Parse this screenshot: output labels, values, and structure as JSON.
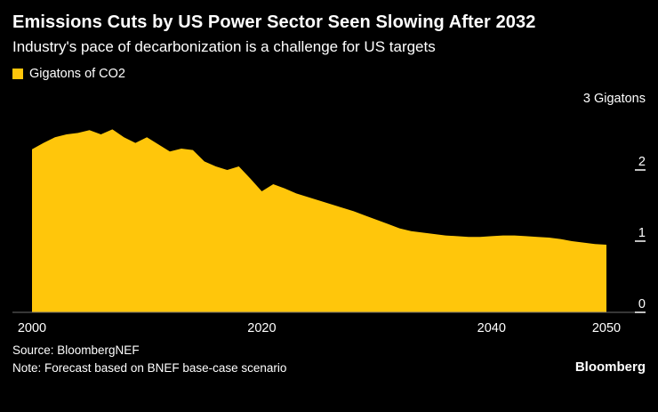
{
  "header": {
    "title": "Emissions Cuts by US Power Sector Seen Slowing After 2032",
    "subtitle": "Industry's pace of decarbonization is a challenge for US targets"
  },
  "legend": {
    "label": "Gigatons of CO2"
  },
  "footer": {
    "source": "Source: BloombergNEF",
    "note": "Note: Forecast based on BNEF base-case scenario",
    "brand": "Bloomberg"
  },
  "colors": {
    "series": "#FFC60B",
    "axis_line": "#6b6b6b",
    "tick_text": "#ffffff",
    "background": "#000000"
  },
  "chart_data": {
    "type": "area",
    "title": "Emissions Cuts by US Power Sector Seen Slowing After 2032",
    "subtitle": "Industry's pace of decarbonization is a challenge for US targets",
    "legend": [
      "Gigatons of CO2"
    ],
    "unit_top_label": "3 Gigatons",
    "ylabel": "Gigatons of CO2",
    "xlabel": "",
    "ylim": [
      0,
      3
    ],
    "xlim": [
      2000,
      2050
    ],
    "yticks": [
      2,
      1,
      0
    ],
    "xticks": [
      2000,
      2020,
      2040,
      2050
    ],
    "grid": false,
    "legend_position": "top-left",
    "x": [
      2000,
      2001,
      2002,
      2003,
      2004,
      2005,
      2006,
      2007,
      2008,
      2009,
      2010,
      2011,
      2012,
      2013,
      2014,
      2015,
      2016,
      2017,
      2018,
      2019,
      2020,
      2021,
      2022,
      2023,
      2024,
      2025,
      2026,
      2027,
      2028,
      2029,
      2030,
      2031,
      2032,
      2033,
      2034,
      2035,
      2036,
      2037,
      2038,
      2039,
      2040,
      2041,
      2042,
      2043,
      2044,
      2045,
      2046,
      2047,
      2048,
      2049,
      2050
    ],
    "values": [
      2.29,
      2.38,
      2.46,
      2.5,
      2.52,
      2.56,
      2.5,
      2.57,
      2.46,
      2.38,
      2.46,
      2.36,
      2.26,
      2.3,
      2.28,
      2.12,
      2.05,
      2.0,
      2.05,
      1.88,
      1.7,
      1.8,
      1.74,
      1.67,
      1.62,
      1.57,
      1.52,
      1.47,
      1.42,
      1.36,
      1.3,
      1.24,
      1.18,
      1.14,
      1.12,
      1.1,
      1.08,
      1.07,
      1.06,
      1.06,
      1.07,
      1.08,
      1.08,
      1.07,
      1.06,
      1.05,
      1.03,
      1.0,
      0.98,
      0.96,
      0.95
    ]
  }
}
